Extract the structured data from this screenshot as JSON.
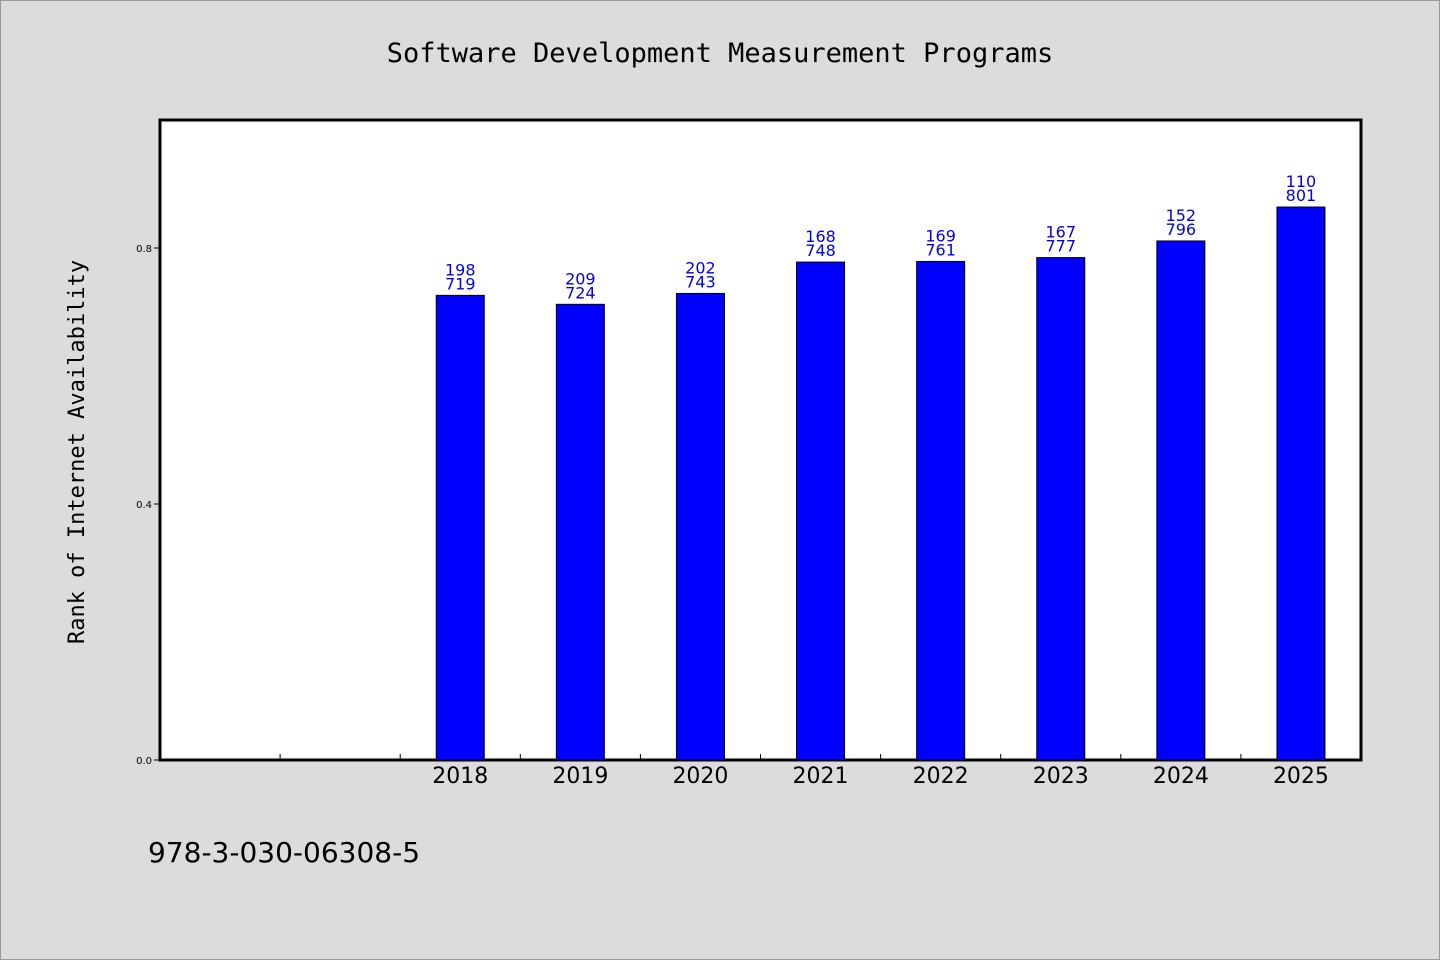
{
  "chart_data": {
    "type": "bar",
    "title": "Software Development Measurement Programs",
    "xlabel": "",
    "ylabel": "Rank of Internet Availability",
    "categories": [
      "",
      "",
      "2018",
      "2019",
      "2020",
      "2021",
      "2022",
      "2023",
      "2024",
      "2025"
    ],
    "values": [
      null,
      null,
      0.726,
      0.712,
      0.729,
      0.778,
      0.779,
      0.785,
      0.811,
      0.864
    ],
    "data_labels": [
      null,
      null,
      [
        "198",
        "719"
      ],
      [
        "209",
        "724"
      ],
      [
        "202",
        "743"
      ],
      [
        "168",
        "748"
      ],
      [
        "169",
        "761"
      ],
      [
        "167",
        "777"
      ],
      [
        "152",
        "796"
      ],
      [
        "110",
        "801"
      ]
    ],
    "ylim": [
      0,
      1.0
    ],
    "yticks": [
      "0.0",
      "0.4",
      "0.8"
    ],
    "ytick_values": [
      0.0,
      0.4,
      0.8
    ],
    "grid": false,
    "bar_color": "#0000ff",
    "label_color": "#0000ee"
  },
  "footer": {
    "isbn": "978-3-030-06308-5"
  }
}
